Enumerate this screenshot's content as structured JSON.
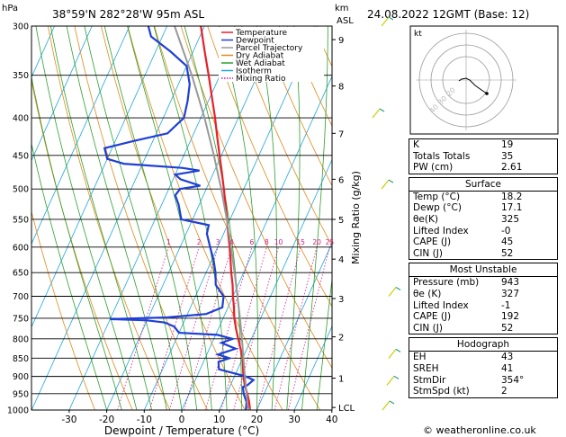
{
  "header": {
    "location": "38°59'N  282°28'W  95m  ASL",
    "datetime": "24.08.2022  12GMT  (Base: 12)",
    "hpa_unit": "hPa",
    "km_unit": "km",
    "asl_unit": "ASL"
  },
  "chart_data": {
    "type": "line",
    "xlabel": "Dewpoint / Temperature (°C)",
    "ylabel_right": "Mixing Ratio (g/kg)",
    "x_ticks": [
      -30,
      -20,
      -10,
      0,
      10,
      20,
      30,
      40
    ],
    "pressure_levels": [
      300,
      350,
      400,
      450,
      500,
      550,
      600,
      650,
      700,
      750,
      800,
      850,
      900,
      950,
      1000
    ],
    "height_ticks": [
      {
        "label": "9",
        "p": 313
      },
      {
        "label": "8",
        "p": 362
      },
      {
        "label": "7",
        "p": 420
      },
      {
        "label": "6",
        "p": 485
      },
      {
        "label": "5",
        "p": 550
      },
      {
        "label": "4",
        "p": 623
      },
      {
        "label": "3",
        "p": 705
      },
      {
        "label": "2",
        "p": 795
      },
      {
        "label": "1",
        "p": 905
      },
      {
        "label": "LCL",
        "p": 992
      }
    ],
    "mixing_ratio_labels": [
      "1",
      "2",
      "3",
      "4",
      "6",
      "8",
      "10",
      "15",
      "20",
      "25"
    ],
    "mixing_ratio_values": [
      1,
      2,
      3,
      4,
      6,
      8,
      10,
      15,
      20,
      25
    ],
    "legend": {
      "placement": "top-right",
      "items": [
        {
          "name": "Temperature",
          "color": "#e8202a"
        },
        {
          "name": "Dewpoint",
          "color": "#1f3fd6"
        },
        {
          "name": "Parcel Trajectory",
          "color": "#999999"
        },
        {
          "name": "Dry Adiabat",
          "color": "#e08a1a"
        },
        {
          "name": "Wet Adiabat",
          "color": "#2ca02c"
        },
        {
          "name": "Isotherm",
          "color": "#1fa6e0"
        },
        {
          "name": "Mixing Ratio",
          "color": "#d6198a"
        }
      ]
    },
    "series": [
      {
        "name": "Temperature",
        "color": "#e8202a",
        "points": [
          [
            1000,
            18.2
          ],
          [
            975,
            17
          ],
          [
            950,
            15.5
          ],
          [
            925,
            13.8
          ],
          [
            900,
            12.4
          ],
          [
            875,
            11.2
          ],
          [
            850,
            10.0
          ],
          [
            825,
            8.3
          ],
          [
            800,
            6.5
          ],
          [
            775,
            4.7
          ],
          [
            750,
            3.0
          ],
          [
            725,
            1.6
          ],
          [
            700,
            0.0
          ],
          [
            675,
            -1.5
          ],
          [
            650,
            -3.3
          ],
          [
            625,
            -5.0
          ],
          [
            600,
            -6.8
          ],
          [
            575,
            -8.8
          ],
          [
            550,
            -10.8
          ],
          [
            525,
            -13.0
          ],
          [
            500,
            -15.3
          ],
          [
            475,
            -17.8
          ],
          [
            450,
            -20.5
          ],
          [
            425,
            -23.3
          ],
          [
            400,
            -26.2
          ],
          [
            375,
            -29.5
          ],
          [
            350,
            -33.0
          ],
          [
            325,
            -36.9
          ],
          [
            300,
            -41.0
          ]
        ]
      },
      {
        "name": "Dewpoint",
        "color": "#1f3fd6",
        "points": [
          [
            1000,
            17.1
          ],
          [
            975,
            16.3
          ],
          [
            950,
            14.5
          ],
          [
            930,
            13.5
          ],
          [
            925,
            14.5
          ],
          [
            910,
            15.5
          ],
          [
            900,
            13.0
          ],
          [
            880,
            5.0
          ],
          [
            860,
            4.0
          ],
          [
            850,
            6.5
          ],
          [
            840,
            3.0
          ],
          [
            825,
            7.0
          ],
          [
            810,
            2.5
          ],
          [
            800,
            5.0
          ],
          [
            790,
            0.5
          ],
          [
            785,
            -10
          ],
          [
            770,
            -12
          ],
          [
            760,
            -15
          ],
          [
            755,
            -20
          ],
          [
            752,
            -30
          ],
          [
            748,
            -15
          ],
          [
            740,
            -5
          ],
          [
            725,
            -1.5
          ],
          [
            700,
            -2.5
          ],
          [
            675,
            -6.0
          ],
          [
            650,
            -7.5
          ],
          [
            625,
            -9.5
          ],
          [
            600,
            -12.0
          ],
          [
            575,
            -14.5
          ],
          [
            560,
            -15.0
          ],
          [
            550,
            -23
          ],
          [
            525,
            -25.5
          ],
          [
            510,
            -27.5
          ],
          [
            500,
            -27.0
          ],
          [
            495,
            -22
          ],
          [
            485,
            -28
          ],
          [
            478,
            -30
          ],
          [
            472,
            -24
          ],
          [
            468,
            -29
          ],
          [
            462,
            -45
          ],
          [
            455,
            -50
          ],
          [
            440,
            -52
          ],
          [
            430,
            -45
          ],
          [
            420,
            -37
          ],
          [
            400,
            -34.5
          ],
          [
            380,
            -35.5
          ],
          [
            360,
            -37.0
          ],
          [
            340,
            -40
          ],
          [
            325,
            -46
          ],
          [
            310,
            -53
          ],
          [
            300,
            -55
          ]
        ]
      },
      {
        "name": "Parcel Trajectory",
        "color": "#999999",
        "points": [
          [
            1000,
            18.2
          ],
          [
            992,
            17.3
          ],
          [
            950,
            15.3
          ],
          [
            900,
            12.8
          ],
          [
            850,
            10.2
          ],
          [
            800,
            7.5
          ],
          [
            750,
            4.5
          ],
          [
            700,
            1.2
          ],
          [
            650,
            -2.4
          ],
          [
            600,
            -6.4
          ],
          [
            550,
            -10.9
          ],
          [
            500,
            -16.0
          ],
          [
            450,
            -22.0
          ],
          [
            400,
            -29.0
          ],
          [
            350,
            -37.5
          ],
          [
            300,
            -48.0
          ]
        ]
      }
    ]
  },
  "hodograph": {
    "label": "kt",
    "ring_labels": [
      "40",
      "30",
      "20"
    ]
  },
  "indices": {
    "rows": [
      {
        "name": "K",
        "value": "19"
      },
      {
        "name": "Totals Totals",
        "value": "35"
      },
      {
        "name": "PW (cm)",
        "value": "2.61"
      }
    ]
  },
  "surface": {
    "title": "Surface",
    "rows": [
      {
        "name": "Temp (°C)",
        "value": "18.2"
      },
      {
        "name": "Dewp (°C)",
        "value": "17.1"
      },
      {
        "name": "θe(K)",
        "value": "325"
      },
      {
        "name": "Lifted Index",
        "value": "-0"
      },
      {
        "name": "CAPE (J)",
        "value": "45"
      },
      {
        "name": "CIN (J)",
        "value": "52"
      }
    ]
  },
  "most_unstable": {
    "title": "Most Unstable",
    "rows": [
      {
        "name": "Pressure (mb)",
        "value": "943"
      },
      {
        "name": "θe (K)",
        "value": "327"
      },
      {
        "name": "Lifted Index",
        "value": "-1"
      },
      {
        "name": "CAPE (J)",
        "value": "192"
      },
      {
        "name": "CIN (J)",
        "value": "52"
      }
    ]
  },
  "hodograph_table": {
    "title": "Hodograph",
    "rows": [
      {
        "name": "EH",
        "value": "43"
      },
      {
        "name": "SREH",
        "value": "41"
      },
      {
        "name": "StmDir",
        "value": "354°"
      },
      {
        "name": "StmSpd (kt)",
        "value": "2"
      }
    ]
  },
  "footer": {
    "copyright": "© weatheronline.co.uk"
  },
  "colors": {
    "dry_adiabat": "#e08a1a",
    "wet_adiabat": "#2ca02c",
    "isotherm": "#1fa6e0",
    "mixing_ratio": "#d6198a",
    "wind_barb": "#c8d000"
  }
}
